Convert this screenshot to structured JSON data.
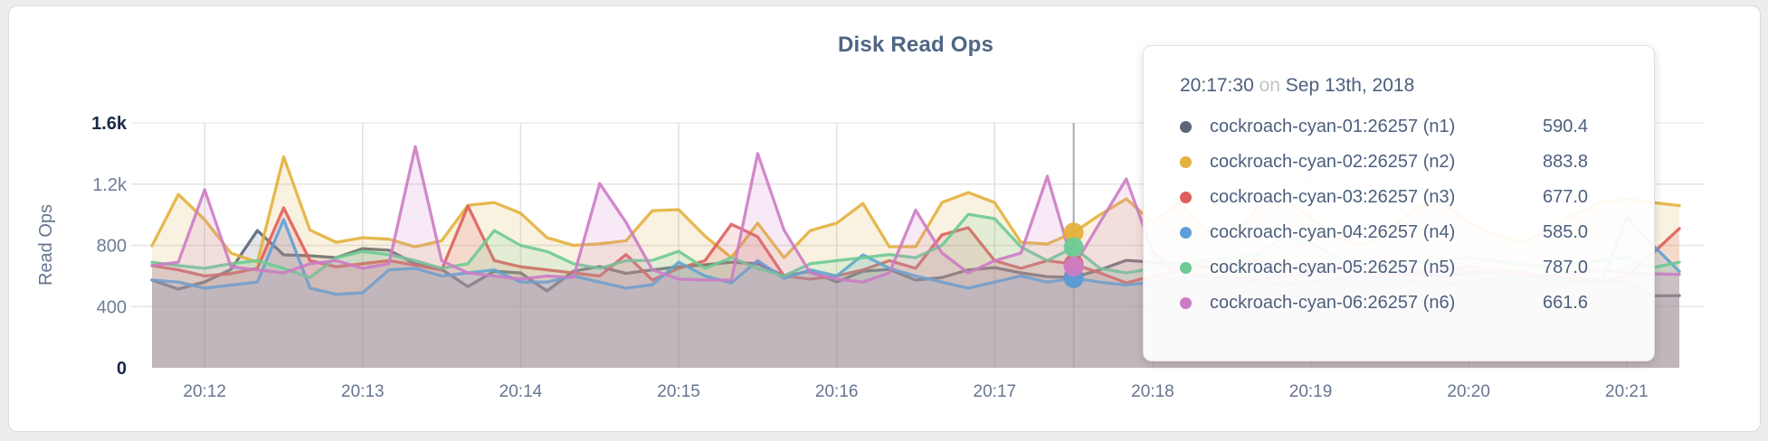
{
  "chart": {
    "title": "Disk Read Ops",
    "ylabel": "Read Ops",
    "yticks": [
      {
        "label": "1.6k",
        "value": 1600,
        "emph": true,
        "grid": true
      },
      {
        "label": "1.2k",
        "value": 1200,
        "emph": false,
        "grid": true
      },
      {
        "label": "800",
        "value": 800,
        "emph": false,
        "grid": true
      },
      {
        "label": "400",
        "value": 400,
        "emph": false,
        "grid": true
      },
      {
        "label": "0",
        "value": 0,
        "emph": true,
        "grid": false
      }
    ],
    "xticks": [
      "20:12",
      "20:13",
      "20:14",
      "20:15",
      "20:16",
      "20:17",
      "20:18",
      "20:19",
      "20:20",
      "20:21"
    ]
  },
  "chart_data": {
    "type": "area",
    "x_start": "20:11:40",
    "x_step_seconds": 10,
    "ylim": [
      0,
      1600
    ],
    "highlight_index": 35,
    "highlight_time": "20:17:30",
    "series": [
      {
        "name": "cockroach-cyan-01:26257 (n1)",
        "color": "#5c6678",
        "values": [
          573,
          514,
          561,
          643,
          897,
          738,
          732,
          720,
          779,
          768,
          679,
          643,
          531,
          631,
          620,
          502,
          631,
          661,
          617,
          640,
          660,
          673,
          690,
          680,
          600,
          631,
          561,
          631,
          643,
          573,
          590,
          640,
          655,
          620,
          596,
          590.4,
          640,
          702,
          690,
          679,
          661,
          649,
          637,
          649,
          661,
          640,
          630,
          620,
          610,
          600,
          615,
          625,
          610,
          595,
          580,
          570,
          560,
          470,
          472
        ]
      },
      {
        "name": "cockroach-cyan-02:26257 (n2)",
        "color": "#e3b13c",
        "values": [
          797,
          1133,
          968,
          750,
          690,
          1378,
          900,
          820,
          850,
          840,
          790,
          830,
          1062,
          1080,
          1010,
          850,
          800,
          810,
          830,
          1027,
          1033,
          860,
          720,
          945,
          720,
          897,
          945,
          1074,
          791,
          791,
          1080,
          1145,
          1080,
          820,
          809,
          883.8,
          1000,
          1104,
          950,
          1080,
          900,
          850,
          1050,
          1100,
          980,
          850,
          800,
          900,
          1050,
          1080,
          950,
          870,
          820,
          900,
          1000,
          1080,
          1100,
          1080,
          1060
        ]
      },
      {
        "name": "cockroach-cyan-03:26257 (n3)",
        "color": "#de5f5b",
        "values": [
          668,
          640,
          600,
          615,
          650,
          1045,
          700,
          660,
          680,
          700,
          670,
          640,
          1057,
          700,
          660,
          640,
          620,
          600,
          740,
          573,
          650,
          700,
          938,
          856,
          600,
          580,
          600,
          640,
          700,
          650,
          869,
          915,
          700,
          650,
          700,
          677,
          620,
          555,
          600,
          640,
          660,
          680,
          700,
          680,
          660,
          640,
          620,
          600,
          620,
          640,
          660,
          640,
          620,
          600,
          580,
          560,
          600,
          750,
          910
        ]
      },
      {
        "name": "cockroach-cyan-04:26257 (n4)",
        "color": "#5f9ed8",
        "values": [
          573,
          560,
          520,
          540,
          560,
          968,
          520,
          480,
          490,
          640,
          650,
          600,
          620,
          640,
          560,
          560,
          600,
          560,
          520,
          543,
          690,
          600,
          555,
          700,
          584,
          640,
          600,
          738,
          650,
          600,
          560,
          520,
          560,
          600,
          560,
          585,
          560,
          540,
          560,
          580,
          600,
          580,
          560,
          540,
          560,
          580,
          600,
          580,
          560,
          540,
          560,
          580,
          600,
          580,
          560,
          540,
          985,
          800,
          630
        ]
      },
      {
        "name": "cockroach-cyan-05:26257 (n5)",
        "color": "#6dcb93",
        "values": [
          690,
          668,
          650,
          680,
          700,
          650,
          590,
          720,
          760,
          740,
          700,
          650,
          680,
          897,
          800,
          760,
          680,
          650,
          700,
          702,
          761,
          650,
          720,
          650,
          600,
          680,
          700,
          720,
          740,
          720,
          800,
          1003,
          974,
          790,
          700,
          787,
          650,
          620,
          650,
          680,
          700,
          720,
          740,
          860,
          820,
          720,
          680,
          660,
          680,
          700,
          720,
          700,
          680,
          660,
          680,
          700,
          720,
          655,
          690
        ]
      },
      {
        "name": "cockroach-cyan-06:26257 (n6)",
        "color": "#cc7cc5",
        "values": [
          668,
          690,
          1163,
          660,
          640,
          620,
          680,
          700,
          650,
          680,
          1445,
          700,
          620,
          600,
          580,
          600,
          590,
          1204,
          950,
          640,
          580,
          573,
          573,
          1400,
          900,
          620,
          580,
          560,
          620,
          1030,
          750,
          620,
          700,
          750,
          1251,
          661.6,
          950,
          1234,
          760,
          620,
          600,
          590,
          580,
          600,
          620,
          640,
          660,
          680,
          650,
          640,
          630,
          620,
          610,
          600,
          620,
          640,
          620,
          614,
          610
        ]
      }
    ]
  },
  "tooltip": {
    "time": "20:17:30",
    "conj": "on",
    "date": "Sep 13th, 2018",
    "values": [
      "590.4",
      "883.8",
      "677.0",
      "585.0",
      "787.0",
      "661.6"
    ]
  }
}
